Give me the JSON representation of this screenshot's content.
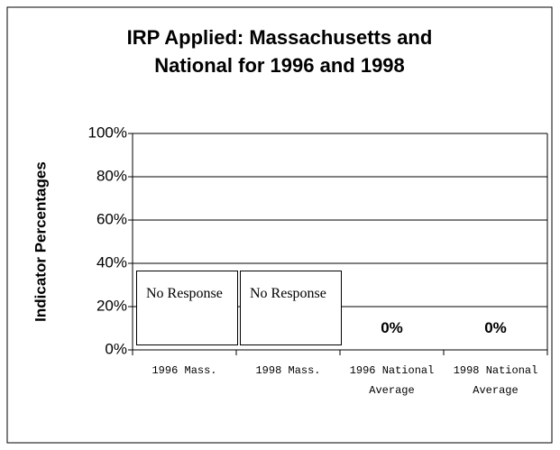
{
  "chart_data": {
    "type": "bar",
    "title": "IRP Applied: Massachusetts and National for 1996 and 1998",
    "y_label": "Indicator Percentages",
    "categories": [
      "1996 Mass.",
      "1998 Mass.",
      "1996 National Average",
      "1998 National Average"
    ],
    "values": [
      null,
      null,
      0,
      0
    ],
    "value_labels": [
      "No Response",
      "No Response",
      "0%",
      "0%"
    ],
    "color": "#000000",
    "ylim": [
      0,
      100
    ],
    "yticks": [
      {
        "value": 0,
        "label": "0%"
      },
      {
        "value": 20,
        "label": "20%"
      },
      {
        "value": 40,
        "label": "40%"
      },
      {
        "value": 60,
        "label": "60%"
      },
      {
        "value": 80,
        "label": "80%"
      },
      {
        "value": 100,
        "label": "100%"
      }
    ],
    "grid": true
  }
}
